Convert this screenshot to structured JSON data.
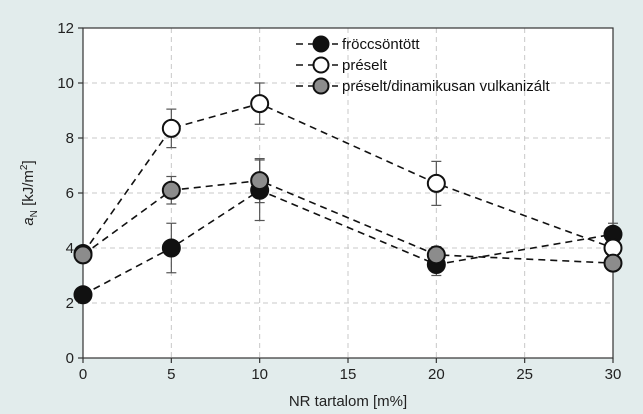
{
  "chart_data": {
    "type": "line",
    "xlabel": "NR tartalom [m%]",
    "ylabel_main": "a",
    "ylabel_sub": "N",
    "ylabel_unit_pre": " [kJ/m",
    "ylabel_unit_sup": "2",
    "ylabel_unit_post": "]",
    "xlim": [
      0,
      30
    ],
    "ylim": [
      0,
      12
    ],
    "xticks": [
      "0",
      "5",
      "10",
      "15",
      "20",
      "25",
      "30"
    ],
    "yticks": [
      "0",
      "2",
      "4",
      "6",
      "8",
      "10",
      "12"
    ],
    "x": [
      0,
      5,
      10,
      20,
      30
    ],
    "grid": true,
    "legend_position": "top-right",
    "series": [
      {
        "name": "fröccsöntött",
        "values": [
          2.3,
          4.0,
          6.1,
          3.4,
          4.5
        ],
        "errors": [
          0.0,
          0.9,
          1.1,
          0.4,
          0.4
        ],
        "marker_fill": "#111111",
        "marker_stroke": "#111111"
      },
      {
        "name": "préselt",
        "values": [
          3.8,
          8.35,
          9.25,
          6.35,
          4.0
        ],
        "errors": [
          0.0,
          0.7,
          0.75,
          0.8,
          0.3
        ],
        "marker_fill": "#ffffff",
        "marker_stroke": "#111111"
      },
      {
        "name": "préselt/dinamikusan vulkanizált",
        "values": [
          3.75,
          6.1,
          6.45,
          3.75,
          3.45
        ],
        "errors": [
          0.0,
          0.5,
          0.8,
          0.3,
          0.2
        ],
        "marker_fill": "#8c8c8c",
        "marker_stroke": "#111111"
      }
    ],
    "colors": {
      "background": "#e2ecec",
      "plot_background": "#ffffff",
      "grid": "#c8c8c8",
      "line": "#111111"
    }
  }
}
